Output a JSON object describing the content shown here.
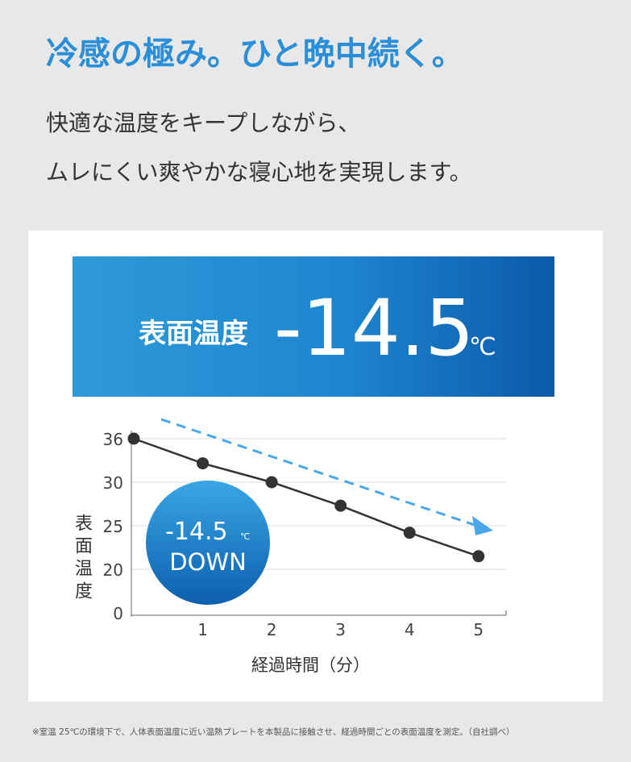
{
  "header": {
    "title": "冷感の極み。ひと晩中続く。",
    "subtitle": [
      "快適な温度をキープしながら、",
      "ムレにくい爽やかな寝心地を実現します。"
    ]
  },
  "banner": {
    "label": "表面温度",
    "value": "-14.5",
    "unit": "℃"
  },
  "chart_data": {
    "type": "line",
    "x": [
      0,
      1,
      2,
      3,
      4,
      5
    ],
    "xlim": [
      0,
      5.4
    ],
    "xticks": [
      1,
      2,
      3,
      4,
      5
    ],
    "ylim": [
      0,
      36
    ],
    "yticks": [
      0,
      20,
      25,
      30,
      36
    ],
    "y_label": "表面温度",
    "x_label": "経過時間（分）",
    "series": [
      {
        "color": "#333333",
        "values": [
          36,
          32.6,
          30,
          27.3,
          24.2,
          21.5
        ]
      }
    ],
    "grid": true,
    "annotation": {
      "value": "-14.5",
      "unit": "℃",
      "text": "DOWN"
    }
  },
  "footnote": "※室温 25℃の環境下で、人体表面温度に近い温熱プレートを本製品に接触させ、経過時間ごとの表面温度を測定。（自社調べ）"
}
